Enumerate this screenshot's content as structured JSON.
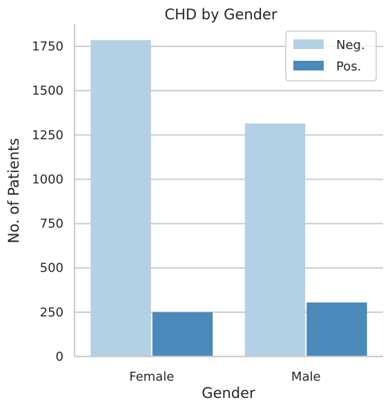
{
  "chart_data": {
    "type": "bar",
    "title": "CHD by Gender",
    "xlabel": "Gender",
    "ylabel": "No. of Patients",
    "categories": [
      "Female",
      "Male"
    ],
    "series": [
      {
        "name": "Neg.",
        "values": [
          1785,
          1315
        ],
        "color": "#b3d0e4"
      },
      {
        "name": "Pos.",
        "values": [
          250,
          305
        ],
        "color": "#4a89b9"
      }
    ],
    "ylim": [
      0,
      1875
    ],
    "yticks": [
      0,
      250,
      500,
      750,
      1000,
      1250,
      1500,
      1750
    ],
    "grid": "horizontal",
    "legend": "top-right"
  }
}
